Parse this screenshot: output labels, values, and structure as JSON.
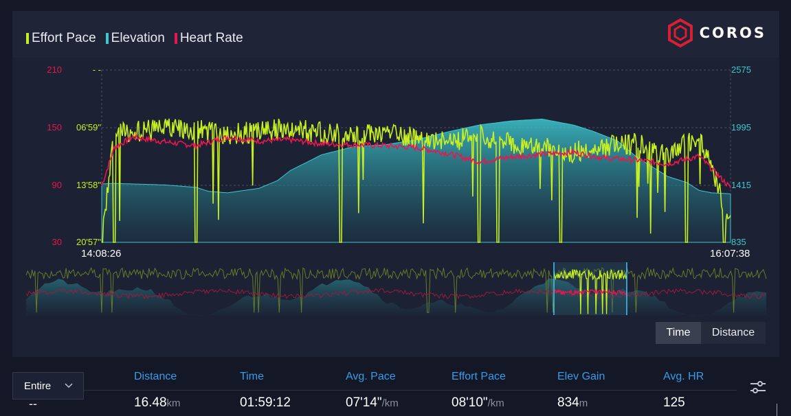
{
  "legend": [
    {
      "label": "Effort Pace",
      "color": "#c8f020"
    },
    {
      "label": "Elevation",
      "color": "#3ec7cf"
    },
    {
      "label": "Heart Rate",
      "color": "#e8174f"
    }
  ],
  "logo": {
    "text": "COROS",
    "color": "#d81f35",
    "icon": "coros-hexagon-icon"
  },
  "chart_data": {
    "type": "line",
    "x_label_start": "14:08:26",
    "x_label_end": "16:07:38",
    "left_axis_hr": {
      "ticks": [
        "210",
        "150",
        "90",
        "30"
      ],
      "color": "#e8174f",
      "range": [
        30,
        210
      ]
    },
    "left_axis_pace": {
      "ticks": [
        "- -",
        "06'59\"",
        "13'58\"",
        "20'57\""
      ],
      "color": "#c8f020"
    },
    "right_axis_elevation": {
      "ticks": [
        "2575",
        "1995",
        "1415",
        "835"
      ],
      "color": "#3ec7cf",
      "range": [
        835,
        2575
      ]
    },
    "grid": "dashed",
    "series": [
      {
        "name": "Elevation",
        "x": [
          0,
          0.02,
          0.1,
          0.15,
          0.17,
          0.2,
          0.25,
          0.28,
          0.3,
          0.35,
          0.4,
          0.45,
          0.5,
          0.55,
          0.6,
          0.65,
          0.7,
          0.75,
          0.78,
          0.82,
          0.85,
          0.9,
          0.93,
          0.95,
          0.97,
          1.0
        ],
        "values": [
          1425,
          1430,
          1415,
          1390,
          1350,
          1335,
          1380,
          1460,
          1560,
          1720,
          1800,
          1820,
          1870,
          1950,
          2020,
          2060,
          2080,
          2020,
          1960,
          1860,
          1700,
          1500,
          1440,
          1360,
          1335,
          1325
        ]
      },
      {
        "name": "Heart Rate",
        "x": [
          0,
          0.02,
          0.05,
          0.1,
          0.15,
          0.2,
          0.25,
          0.3,
          0.35,
          0.4,
          0.45,
          0.5,
          0.55,
          0.6,
          0.65,
          0.7,
          0.75,
          0.8,
          0.85,
          0.9,
          0.95,
          1.0
        ],
        "values": [
          89,
          129,
          140,
          135,
          131,
          140,
          136,
          137,
          133,
          132,
          131,
          129,
          123,
          114,
          119,
          122,
          124,
          118,
          116,
          112,
          120,
          87
        ]
      },
      {
        "name": "Effort Pace",
        "x": [
          0,
          0.02,
          0.1,
          0.15,
          0.2,
          0.25,
          0.3,
          0.35,
          0.4,
          0.45,
          0.5,
          0.55,
          0.6,
          0.65,
          0.7,
          0.75,
          0.8,
          0.85,
          0.9,
          0.95,
          1.0
        ],
        "values": [
          1257,
          470,
          430,
          440,
          470,
          450,
          420,
          460,
          480,
          450,
          500,
          520,
          480,
          540,
          560,
          600,
          560,
          540,
          620,
          480,
          1100
        ]
      }
    ],
    "dropouts": [
      0.02,
      0.15,
      0.38,
      0.6,
      0.63,
      0.73,
      0.93,
      0.99
    ]
  },
  "toggle": {
    "time": "Time",
    "distance": "Distance"
  },
  "range_select": {
    "value": "Entire"
  },
  "stats": {
    "dash": "--",
    "items": [
      {
        "label": "Distance",
        "value": "16.48",
        "unit": "km"
      },
      {
        "label": "Time",
        "value": "01:59:12",
        "unit": ""
      },
      {
        "label": "Avg. Pace",
        "value": "07'14\"",
        "unit": "/km"
      },
      {
        "label": "Effort Pace",
        "value": "08'10\"",
        "unit": "/km"
      },
      {
        "label": "Elev Gain",
        "value": "834",
        "unit": "m"
      },
      {
        "label": "Avg. HR",
        "value": "125",
        "unit": ""
      }
    ]
  }
}
